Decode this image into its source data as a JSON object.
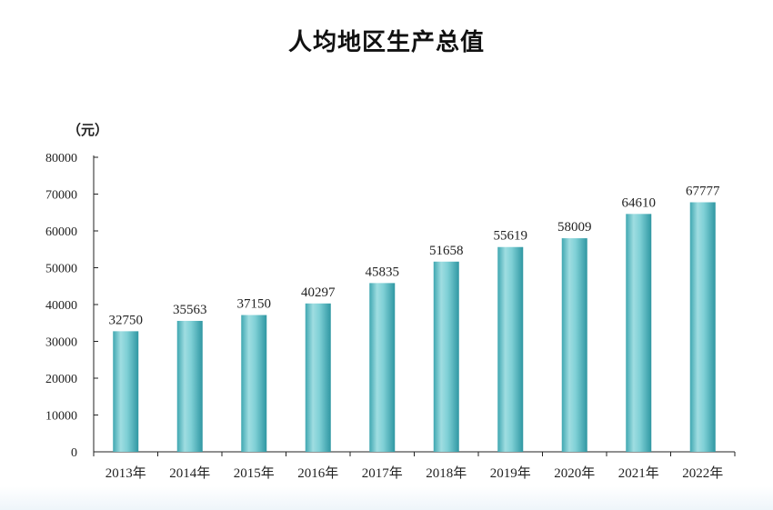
{
  "chart_data": {
    "type": "bar",
    "title": "人均地区生产总值",
    "ylabel": "（元）",
    "xlabel": "",
    "categories": [
      "2013年",
      "2014年",
      "2015年",
      "2016年",
      "2017年",
      "2018年",
      "2019年",
      "2020年",
      "2021年",
      "2022年"
    ],
    "values": [
      32750,
      35563,
      37150,
      40297,
      45835,
      51658,
      55619,
      58009,
      64610,
      67777
    ],
    "ylim": [
      0,
      80000
    ],
    "yticks": [
      0,
      10000,
      20000,
      30000,
      40000,
      50000,
      60000,
      70000,
      80000
    ],
    "grid": false,
    "bar_color": "#5bbfc6"
  }
}
